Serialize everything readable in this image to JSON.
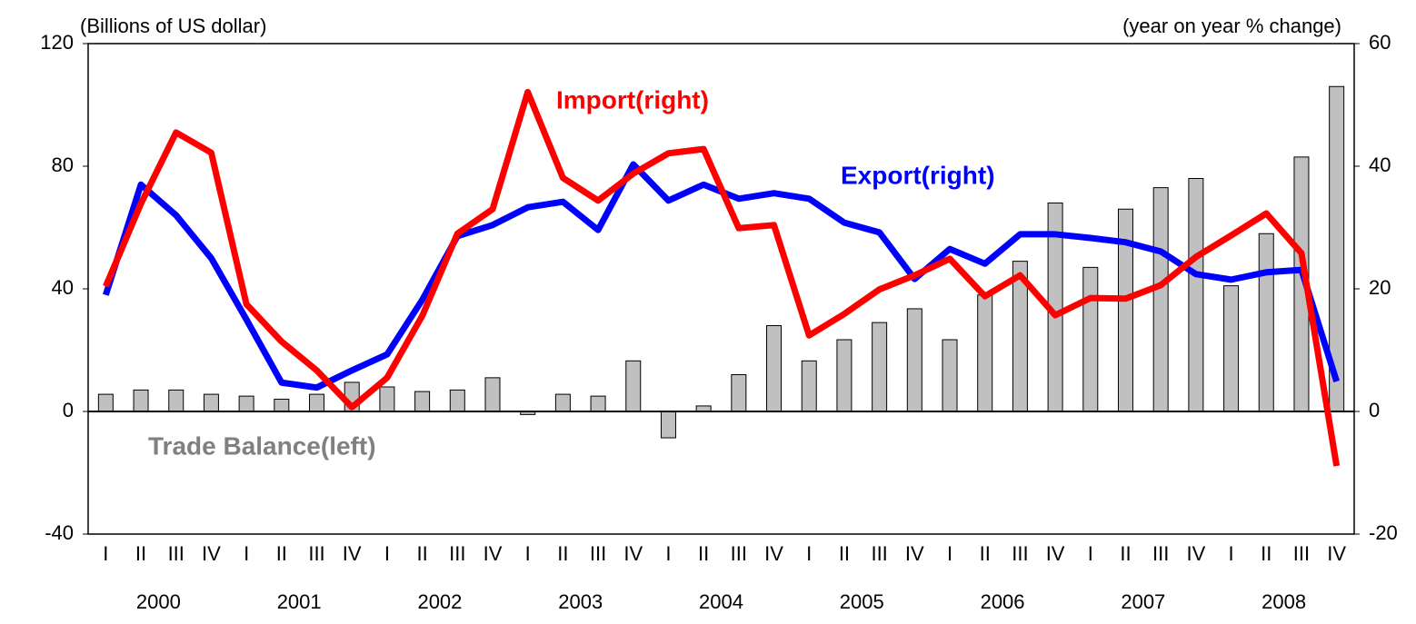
{
  "chart_data": {
    "type": "bar-line",
    "y_label": "(Billions of US dollar)",
    "y2_label": "(year on year % change)",
    "categories": [
      "I",
      "II",
      "III",
      "IV",
      "I",
      "II",
      "III",
      "IV",
      "I",
      "II",
      "III",
      "IV",
      "I",
      "II",
      "III",
      "IV",
      "I",
      "II",
      "III",
      "IV",
      "I",
      "II",
      "III",
      "IV",
      "I",
      "II",
      "III",
      "IV",
      "I",
      "II",
      "III",
      "IV",
      "I",
      "II",
      "III",
      "IV"
    ],
    "years": [
      "2000",
      "2001",
      "2002",
      "2003",
      "2004",
      "2005",
      "2006",
      "2007",
      "2008"
    ],
    "ylim": [
      -40,
      120
    ],
    "yticks": [
      -40,
      0,
      40,
      80,
      120
    ],
    "y2lim": [
      -20,
      60
    ],
    "y2ticks": [
      -20,
      0,
      20,
      40,
      60
    ],
    "series": [
      {
        "name": "Trade Balance(left)",
        "type": "bar",
        "color": "#c0c0c0",
        "label_color": "#808080",
        "values": [
          5.6,
          7,
          7,
          5.6,
          5,
          4,
          5.6,
          9.5,
          8,
          6.5,
          7,
          11,
          -1,
          5.6,
          5,
          16.5,
          -8.6,
          1.8,
          12,
          28,
          16.5,
          23.4,
          29,
          33.5,
          23.4,
          38,
          49,
          68,
          47,
          66,
          73,
          76,
          41,
          58,
          83,
          106
        ]
      },
      {
        "name": "Export(right)",
        "type": "line",
        "axis": "y2",
        "color": "#0000ff",
        "label_color": "#0000ff",
        "values": [
          19,
          37,
          32,
          25,
          15,
          4.7,
          3.9,
          6.7,
          9.3,
          18.2,
          28.6,
          30.4,
          33.3,
          34.2,
          29.6,
          40.3,
          34.4,
          37,
          34.7,
          35.6,
          34.7,
          30.8,
          29.2,
          21.6,
          26.5,
          24.1,
          28.9,
          28.9,
          28.3,
          27.6,
          26.1,
          22.4,
          21.5,
          22.7,
          23.1,
          4.9
        ]
      },
      {
        "name": "Import(right)",
        "type": "line",
        "axis": "y2",
        "color": "#ff0000",
        "label_color": "#ff0000",
        "values": [
          20.4,
          33.9,
          45.5,
          42.2,
          17.5,
          11.4,
          6.7,
          0.7,
          5.5,
          15.6,
          29,
          33,
          52.1,
          38.1,
          34.4,
          38.8,
          42.1,
          42.8,
          29.9,
          30.4,
          12.4,
          15.9,
          19.9,
          22.2,
          24.9,
          18.8,
          22.2,
          15.7,
          18.5,
          18.4,
          20.6,
          25.2,
          28.7,
          32.3,
          25.8,
          -8.9
        ]
      }
    ]
  }
}
